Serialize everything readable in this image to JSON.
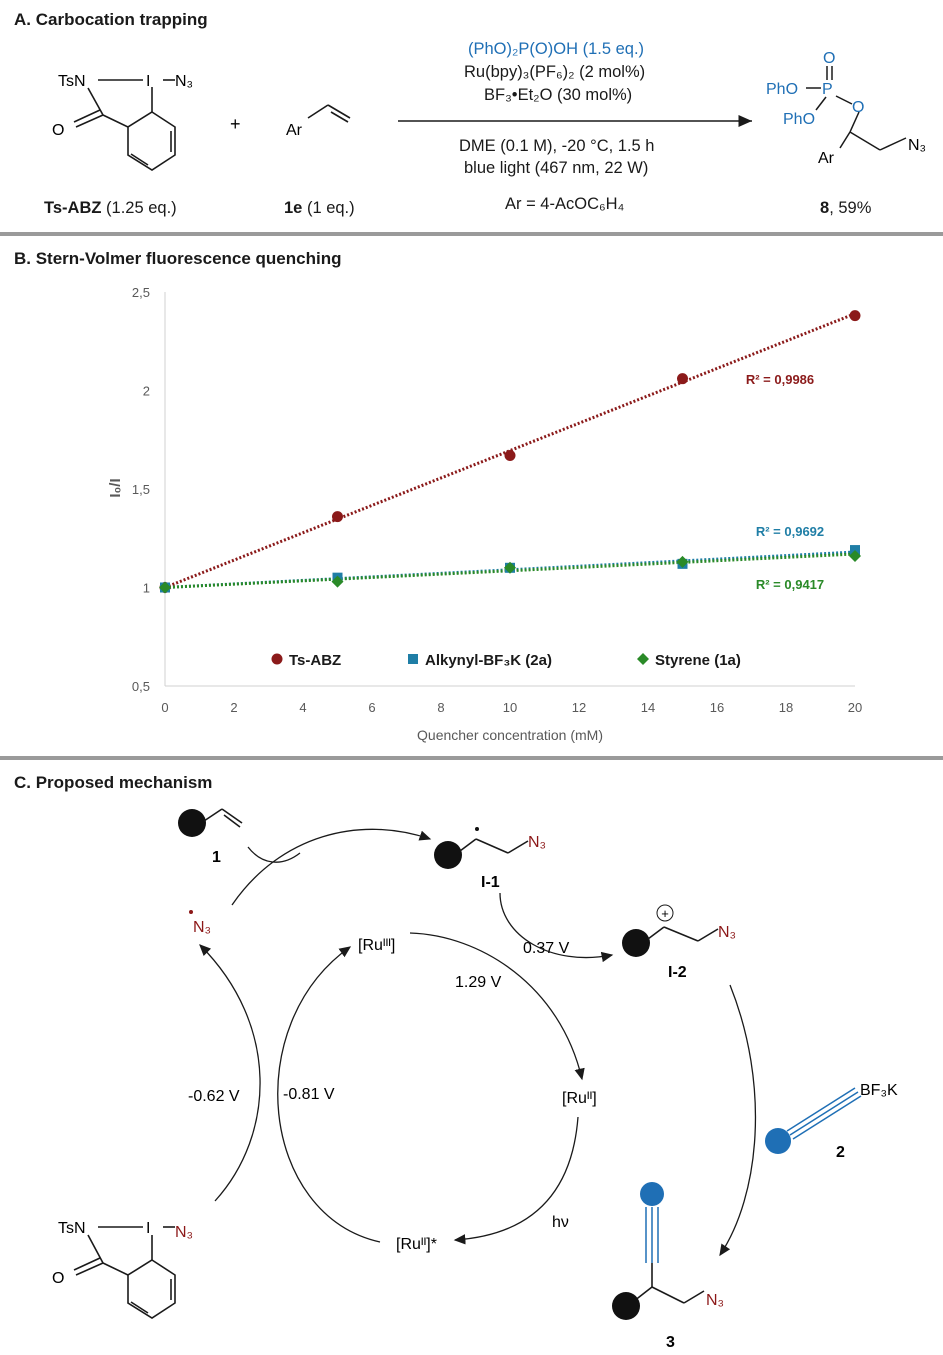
{
  "panel_a": {
    "title": "A. Carbocation trapping",
    "reagent1": "(PhO)₂P(O)OH (1.5 eq.)",
    "reagent2": "Ru(bpy)₃(PF₆)₂ (2 mol%)",
    "reagent3": "BF₃•Et₂O (30 mol%)",
    "cond1": "DME (0.1 M), -20 °C, 1.5 h",
    "cond2": "blue light (467 nm, 22 W)",
    "ar_def": "Ar = 4-AcOC₆H₄",
    "plus": "+",
    "sm1_label_bold": "Ts-ABZ",
    "sm1_label_rest": " (1.25 eq.)",
    "sm2_label_bold": "1e",
    "sm2_label_rest": " (1 eq.)",
    "product_label_bold": "8",
    "product_label_rest": ", 59%",
    "atoms": {
      "tsn": "TsN",
      "i": "I",
      "n3": "N₃",
      "o": "O",
      "ar": "Ar",
      "pho1": "PhO",
      "pho2": "PhO",
      "p": "P",
      "o_top": "O",
      "o_ester": "O"
    }
  },
  "panel_b": {
    "title": "B. Stern-Volmer fluorescence quenching"
  },
  "panel_c": {
    "title": "C. Proposed mechanism",
    "label_1": "1",
    "label_i1": "I-1",
    "label_i2": "I-2",
    "label_2": "2",
    "label_3": "3",
    "n3_radical": "N₃",
    "n3": "N₃",
    "bf3k": "BF₃K",
    "ru3": "[Ruᴵᴵᴵ]",
    "ru2": "[Ruᴵᴵ]",
    "ru2_star": "[Ruᴵᴵ]*",
    "hv": "hν",
    "pot_037": "0.37 V",
    "pot_129": "1.29 V",
    "pot_062": "-0.62 V",
    "pot_081": "-0.81 V",
    "tsn": "TsN",
    "i": "I",
    "o": "O",
    "plus_sign": "+"
  },
  "chart_data": {
    "type": "scatter",
    "title": "",
    "xlabel": "Quencher concentration (mM)",
    "ylabel": "I₀/I",
    "xlim": [
      0,
      20
    ],
    "ylim": [
      0.5,
      2.5
    ],
    "xticks": [
      0,
      2,
      4,
      6,
      8,
      10,
      12,
      14,
      16,
      18,
      20
    ],
    "yticks": [
      "0,5",
      "1",
      "1,5",
      "2",
      "2,5"
    ],
    "grid": false,
    "legend_position": "bottom-inside",
    "series": [
      {
        "name": "Ts-ABZ",
        "color": "#8b1a1a",
        "marker": "circle",
        "x": [
          0,
          5,
          10,
          15,
          20
        ],
        "y": [
          1.0,
          1.36,
          1.67,
          2.06,
          2.38
        ],
        "trendline": {
          "y0": 1.0,
          "y1": 2.39
        },
        "r2": "R² = 0,9986"
      },
      {
        "name": "Alkynyl-BF₃K (2a)",
        "color": "#1f7ea6",
        "marker": "square",
        "x": [
          0,
          5,
          10,
          15,
          20
        ],
        "y": [
          1.0,
          1.05,
          1.1,
          1.12,
          1.19
        ],
        "trendline": {
          "y0": 1.0,
          "y1": 1.18
        },
        "r2": "R² = 0,9692"
      },
      {
        "name": "Styrene (1a)",
        "color": "#2a8a28",
        "marker": "diamond",
        "x": [
          0,
          5,
          10,
          15,
          20
        ],
        "y": [
          1.0,
          1.03,
          1.1,
          1.13,
          1.16
        ],
        "trendline": {
          "y0": 1.0,
          "y1": 1.17
        },
        "r2": "R² = 0,9417"
      }
    ]
  }
}
